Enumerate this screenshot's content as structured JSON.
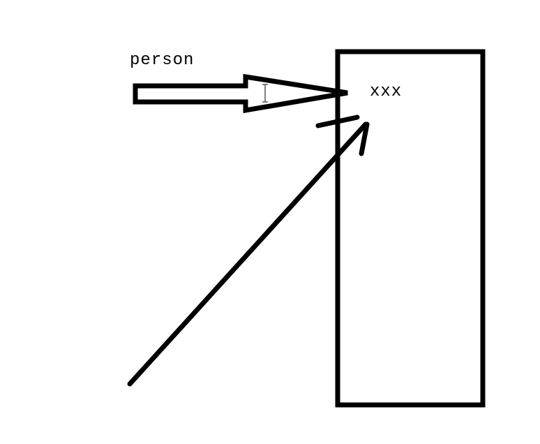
{
  "diagram": {
    "labels": {
      "person": "person",
      "target": "xxx"
    },
    "colors": {
      "stroke": "#000000",
      "background": "#ffffff"
    }
  }
}
